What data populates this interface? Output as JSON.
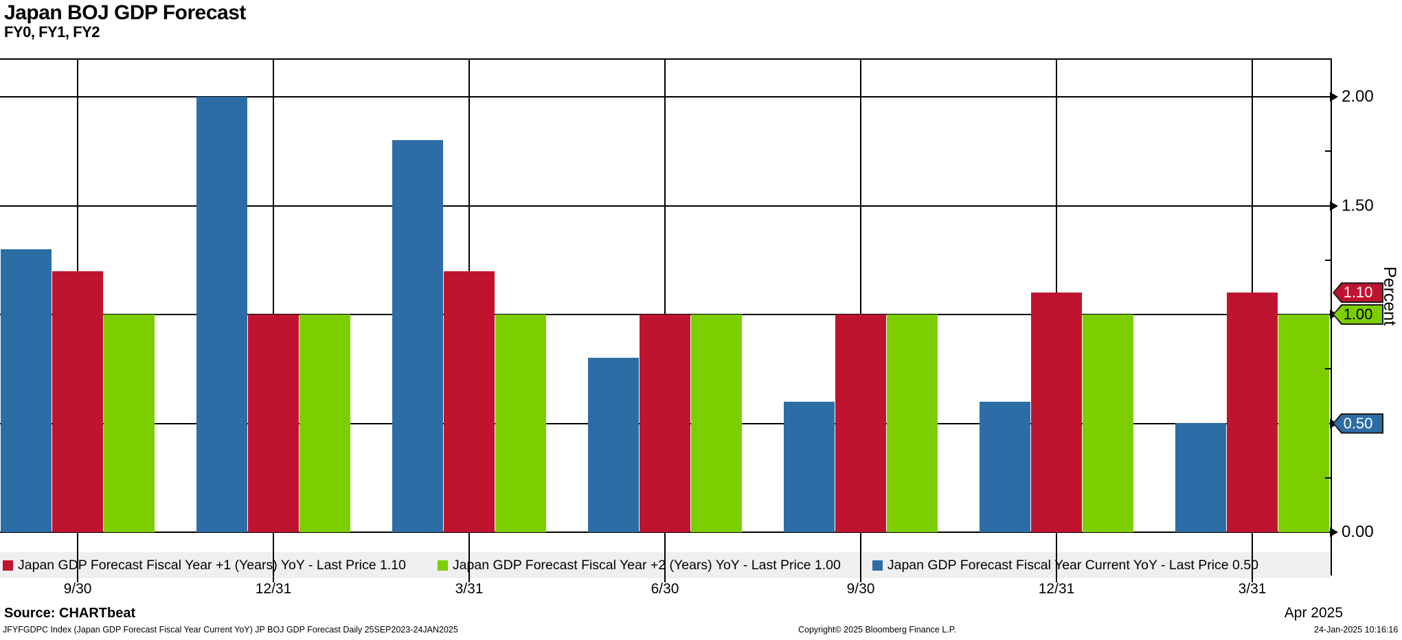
{
  "header": {
    "title": "Japan BOJ GDP Forecast",
    "subtitle": "FY0, FY1, FY2"
  },
  "chart_data": {
    "type": "bar",
    "categories": [
      "9/30",
      "12/31",
      "3/31",
      "6/30",
      "9/30",
      "12/31",
      "3/31"
    ],
    "x_period_label": "Apr 2025",
    "series": [
      {
        "name": "Japan GDP Forecast Fiscal Year Current YoY",
        "legend_label": "Japan GDP Forecast Fiscal Year Current YoY - Last Price 0.50",
        "color": "#2c6da6",
        "last_price": 0.5,
        "values": [
          1.3,
          2.0,
          1.8,
          0.8,
          0.6,
          0.6,
          0.5
        ]
      },
      {
        "name": "Japan GDP Forecast Fiscal Year +1 (Years) YoY",
        "legend_label": "Japan GDP Forecast Fiscal Year +1 (Years) YoY - Last Price 1.10",
        "color": "#bf1430",
        "last_price": 1.1,
        "values": [
          1.2,
          1.0,
          1.2,
          1.0,
          1.0,
          1.1,
          1.1
        ]
      },
      {
        "name": "Japan GDP Forecast Fiscal Year +2 (Years) YoY",
        "legend_label": "Japan GDP Forecast Fiscal Year +2 (Years) YoY - Last Price 1.00",
        "color": "#7dce00",
        "last_price": 1.0,
        "values": [
          1.0,
          1.0,
          1.0,
          1.0,
          1.0,
          1.0,
          1.0
        ]
      }
    ],
    "legend_order": [
      1,
      2,
      0
    ],
    "ylabel": "Percent",
    "y_ticks": [
      {
        "label": "2.00",
        "value": 2.0,
        "show_label": true
      },
      {
        "label": "1.50",
        "value": 1.5,
        "show_label": true
      },
      {
        "label": "1.00",
        "value": 1.0,
        "show_label": false
      },
      {
        "label": "0.50",
        "value": 0.5,
        "show_label": false
      },
      {
        "label": "0.00",
        "value": 0.0,
        "show_label": true
      }
    ],
    "y_minor_ticks": [
      1.75,
      1.25,
      0.75,
      0.25
    ],
    "ylim": [
      -0.35,
      2.18
    ],
    "grid": true,
    "legend_position": "bottom",
    "last_price_tags": [
      {
        "text": "1.10",
        "value": 1.1,
        "bg": "#bf1430",
        "fg": "#ffffff"
      },
      {
        "text": "1.00",
        "value": 1.0,
        "bg": "#7dce00",
        "fg": "#000000"
      },
      {
        "text": "0.50",
        "value": 0.5,
        "bg": "#2c6da6",
        "fg": "#ffffff"
      }
    ]
  },
  "footer": {
    "source": "Source: CHARTbeat",
    "description": "JFYFGDPC Index (Japan GDP Forecast Fiscal Year Current YoY) JP BOJ GDP Forecast  Daily 25SEP2023-24JAN2025",
    "copyright": "Copyright© 2025 Bloomberg Finance L.P.",
    "timestamp": "24-Jan-2025 10:16:16"
  }
}
